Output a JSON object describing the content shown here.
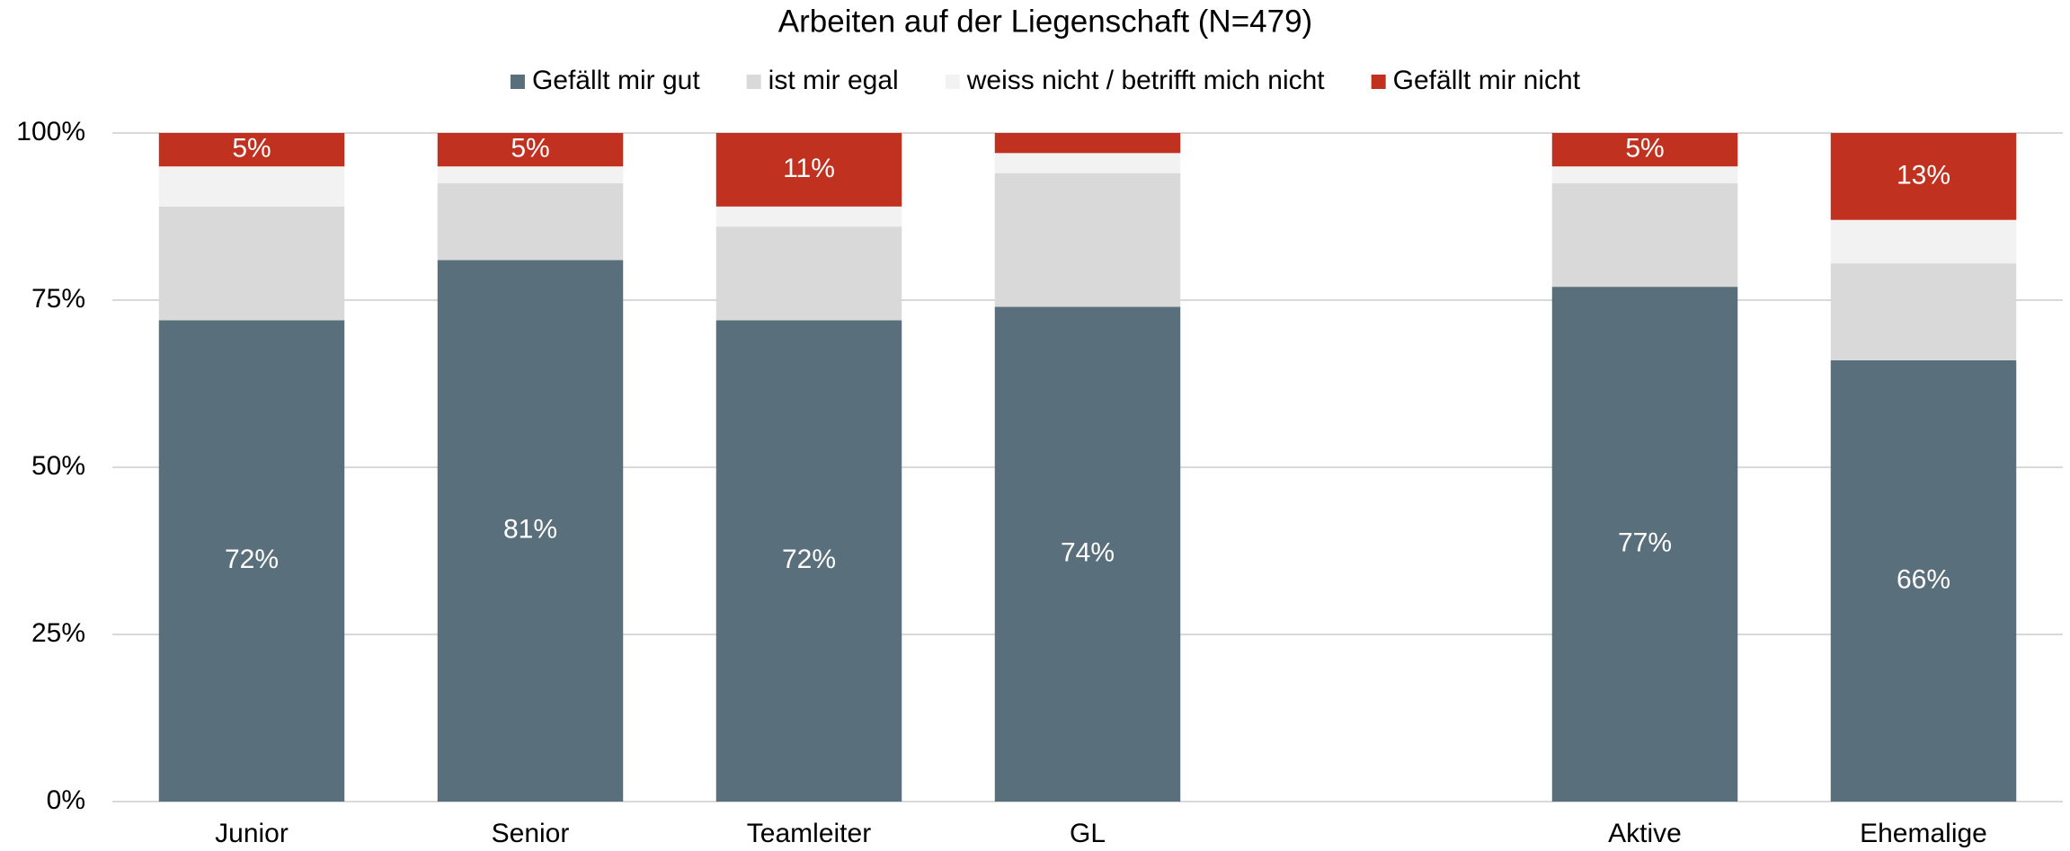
{
  "chart_data": {
    "type": "stacked_bar",
    "title": "Arbeiten auf der Liegenschaft (N=479)",
    "categories": [
      "Junior",
      "Senior",
      "Teamleiter",
      "GL",
      null,
      "Aktive",
      "Ehemalige"
    ],
    "series": [
      {
        "name": "Gefällt mir gut",
        "color": "#59707c",
        "values": [
          72,
          81,
          72,
          74,
          null,
          77,
          66
        ],
        "value_labels": [
          "72%",
          "81%",
          "72%",
          "74%",
          null,
          "77%",
          "66%"
        ]
      },
      {
        "name": "ist mir egal",
        "color": "#d9d9d9",
        "values": [
          17,
          11.5,
          14,
          20,
          null,
          15.5,
          14.5
        ]
      },
      {
        "name": "weiss nicht / betrifft mich nicht",
        "color": "#f2f2f2",
        "values": [
          6,
          2.5,
          3,
          3,
          null,
          2.5,
          6.5
        ]
      },
      {
        "name": "Gefällt mir nicht",
        "color": "#c0311f",
        "values": [
          5,
          5,
          11,
          3,
          null,
          5,
          13
        ],
        "value_labels": [
          "5%",
          "5%",
          "11%",
          null,
          null,
          "5%",
          "13%"
        ]
      }
    ],
    "ylim": [
      0,
      100
    ],
    "yticks": [
      {
        "value": 0,
        "label": "0%"
      },
      {
        "value": 25,
        "label": "25%"
      },
      {
        "value": 50,
        "label": "50%"
      },
      {
        "value": 75,
        "label": "75%"
      },
      {
        "value": 100,
        "label": "100%"
      }
    ],
    "grid": true,
    "legend": "top"
  }
}
